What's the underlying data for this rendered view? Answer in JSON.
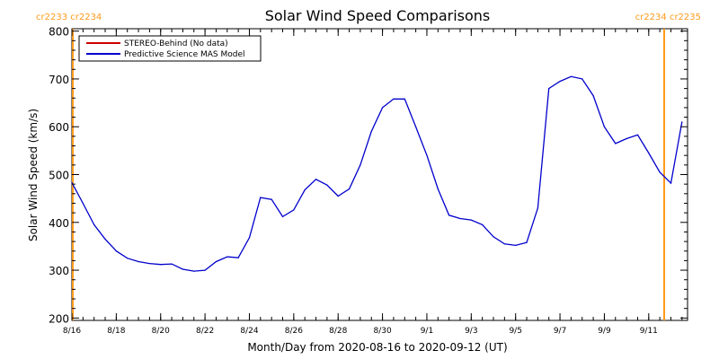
{
  "chart_data": {
    "type": "line",
    "title": "Solar Wind Speed Comparisons",
    "xlabel": "Month/Day from 2020-08-16 to 2020-09-12 (UT)",
    "ylabel": "Solar Wind Speed (km/s)",
    "xlim": [
      "2020-08-16",
      "2020-09-12 18:00"
    ],
    "ylim": [
      195,
      805
    ],
    "yticks": [
      200,
      300,
      400,
      500,
      600,
      700,
      800
    ],
    "xticks": [
      {
        "date": "2020-08-16",
        "label": "8/16"
      },
      {
        "date": "2020-08-18",
        "label": "8/18"
      },
      {
        "date": "2020-08-20",
        "label": "8/20"
      },
      {
        "date": "2020-08-22",
        "label": "8/22"
      },
      {
        "date": "2020-08-24",
        "label": "8/24"
      },
      {
        "date": "2020-08-26",
        "label": "8/26"
      },
      {
        "date": "2020-08-28",
        "label": "8/28"
      },
      {
        "date": "2020-08-30",
        "label": "8/30"
      },
      {
        "date": "2020-09-01",
        "label": "9/1"
      },
      {
        "date": "2020-09-03",
        "label": "9/3"
      },
      {
        "date": "2020-09-05",
        "label": "9/5"
      },
      {
        "date": "2020-09-07",
        "label": "9/7"
      },
      {
        "date": "2020-09-09",
        "label": "9/9"
      },
      {
        "date": "2020-09-11",
        "label": "9/11"
      }
    ],
    "grid": false,
    "legend_position": "top-left",
    "series": [
      {
        "name": "STEREO-Behind (No data)",
        "color": "#cc0000",
        "points": []
      },
      {
        "name": "Predictive Science MAS Model",
        "color": "#0000cc",
        "points": [
          [
            "2020-08-16 00:00",
            483
          ],
          [
            "2020-08-16 12:00",
            440
          ],
          [
            "2020-08-17 00:00",
            395
          ],
          [
            "2020-08-17 12:00",
            365
          ],
          [
            "2020-08-18 00:00",
            340
          ],
          [
            "2020-08-18 12:00",
            325
          ],
          [
            "2020-08-19 00:00",
            318
          ],
          [
            "2020-08-19 12:00",
            314
          ],
          [
            "2020-08-20 00:00",
            312
          ],
          [
            "2020-08-20 12:00",
            313
          ],
          [
            "2020-08-21 00:00",
            302
          ],
          [
            "2020-08-21 12:00",
            298
          ],
          [
            "2020-08-22 00:00",
            300
          ],
          [
            "2020-08-22 12:00",
            318
          ],
          [
            "2020-08-23 00:00",
            328
          ],
          [
            "2020-08-23 12:00",
            326
          ],
          [
            "2020-08-24 00:00",
            368
          ],
          [
            "2020-08-24 12:00",
            452
          ],
          [
            "2020-08-25 00:00",
            448
          ],
          [
            "2020-08-25 12:00",
            412
          ],
          [
            "2020-08-26 00:00",
            426
          ],
          [
            "2020-08-26 12:00",
            468
          ],
          [
            "2020-08-27 00:00",
            490
          ],
          [
            "2020-08-27 12:00",
            478
          ],
          [
            "2020-08-28 00:00",
            455
          ],
          [
            "2020-08-28 12:00",
            470
          ],
          [
            "2020-08-29 00:00",
            520
          ],
          [
            "2020-08-29 12:00",
            590
          ],
          [
            "2020-08-30 00:00",
            640
          ],
          [
            "2020-08-30 12:00",
            658
          ],
          [
            "2020-08-31 00:00",
            658
          ],
          [
            "2020-08-31 12:00",
            600
          ],
          [
            "2020-09-01 00:00",
            540
          ],
          [
            "2020-09-01 12:00",
            470
          ],
          [
            "2020-09-02 00:00",
            415
          ],
          [
            "2020-09-02 12:00",
            408
          ],
          [
            "2020-09-03 00:00",
            405
          ],
          [
            "2020-09-03 12:00",
            395
          ],
          [
            "2020-09-04 00:00",
            370
          ],
          [
            "2020-09-04 12:00",
            355
          ],
          [
            "2020-09-05 00:00",
            352
          ],
          [
            "2020-09-05 12:00",
            358
          ],
          [
            "2020-09-06 00:00",
            430
          ],
          [
            "2020-09-06 12:00",
            680
          ],
          [
            "2020-09-07 00:00",
            695
          ],
          [
            "2020-09-07 12:00",
            705
          ],
          [
            "2020-09-08 00:00",
            700
          ],
          [
            "2020-09-08 12:00",
            665
          ],
          [
            "2020-09-09 00:00",
            600
          ],
          [
            "2020-09-09 12:00",
            565
          ],
          [
            "2020-09-10 00:00",
            575
          ],
          [
            "2020-09-10 12:00",
            583
          ],
          [
            "2020-09-11 00:00",
            545
          ],
          [
            "2020-09-11 12:00",
            505
          ],
          [
            "2020-09-12 00:00",
            482
          ],
          [
            "2020-09-12 12:00",
            610
          ]
        ]
      }
    ],
    "carrington_markers": [
      {
        "label": "cr2233 cr2234",
        "position": "left edge"
      },
      {
        "label": "cr2234 cr2235",
        "position": "right edge"
      }
    ]
  }
}
